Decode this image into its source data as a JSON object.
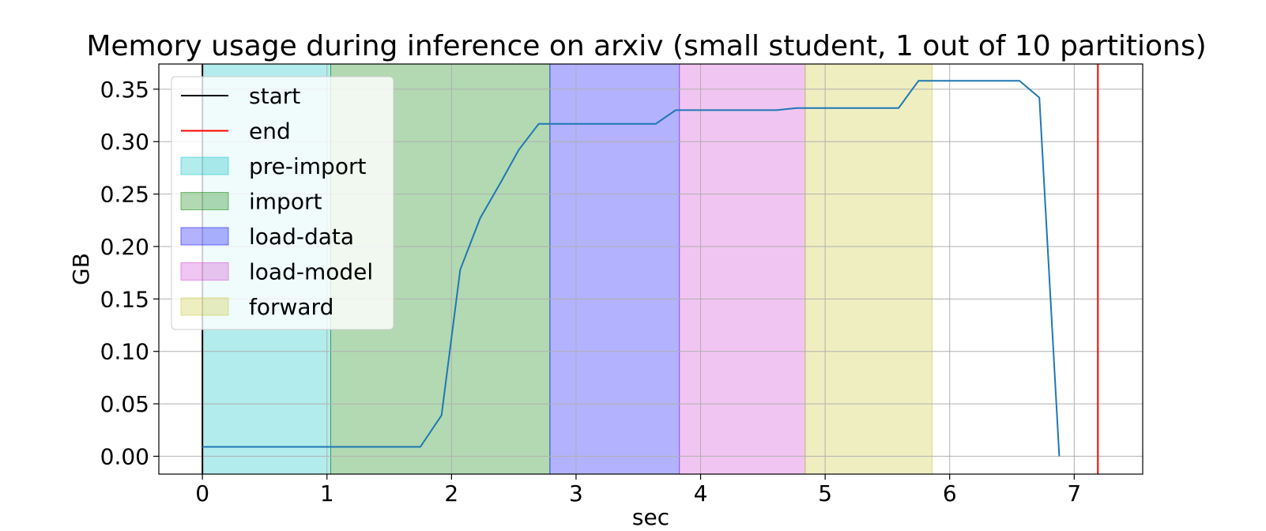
{
  "chart_data": {
    "type": "line",
    "title": "Memory usage during inference on arxiv (small student, 1 out of 10 partitions)",
    "xlabel": "sec",
    "ylabel": "GB",
    "xlim": [
      -0.35,
      7.55
    ],
    "ylim": [
      -0.017,
      0.374
    ],
    "xticks": [
      0,
      1,
      2,
      3,
      4,
      5,
      6,
      7
    ],
    "yticks": [
      0.0,
      0.05,
      0.1,
      0.15,
      0.2,
      0.25,
      0.3,
      0.35
    ],
    "ytick_labels": [
      "0.00",
      "0.05",
      "0.10",
      "0.15",
      "0.20",
      "0.25",
      "0.30",
      "0.35"
    ],
    "grid": true,
    "legend_position": "upper-left",
    "vlines": [
      {
        "name": "start",
        "x": 0.0,
        "color": "#000000"
      },
      {
        "name": "end",
        "x": 7.19,
        "color": "#ff0000"
      }
    ],
    "spans": [
      {
        "name": "pre-import",
        "x0": 0.0,
        "x1": 1.03,
        "color": "#00bfc4"
      },
      {
        "name": "import",
        "x0": 1.03,
        "x1": 2.79,
        "color": "#008000"
      },
      {
        "name": "load-data",
        "x0": 2.79,
        "x1": 3.83,
        "color": "#0000ff"
      },
      {
        "name": "load-model",
        "x0": 3.83,
        "x1": 4.84,
        "color": "#d040d0"
      },
      {
        "name": "forward",
        "x0": 4.84,
        "x1": 5.86,
        "color": "#c8c832"
      }
    ],
    "series": [
      {
        "color": "#1f77b4",
        "x": [
          0.0,
          0.15,
          0.3,
          0.46,
          0.61,
          0.76,
          0.91,
          1.07,
          1.22,
          1.37,
          1.52,
          1.75,
          1.92,
          2.07,
          2.23,
          2.39,
          2.54,
          2.7,
          2.85,
          3.0,
          3.15,
          3.3,
          3.45,
          3.64,
          3.8,
          3.95,
          4.1,
          4.25,
          4.4,
          4.61,
          4.77,
          4.92,
          5.07,
          5.22,
          5.37,
          5.59,
          5.75,
          5.9,
          6.05,
          6.2,
          6.35,
          6.56,
          6.72,
          6.88
        ],
        "y": [
          0.009,
          0.009,
          0.009,
          0.009,
          0.009,
          0.009,
          0.009,
          0.009,
          0.009,
          0.009,
          0.009,
          0.009,
          0.039,
          0.178,
          0.227,
          0.26,
          0.292,
          0.317,
          0.317,
          0.317,
          0.317,
          0.317,
          0.317,
          0.317,
          0.33,
          0.33,
          0.33,
          0.33,
          0.33,
          0.33,
          0.332,
          0.332,
          0.332,
          0.332,
          0.332,
          0.332,
          0.358,
          0.358,
          0.358,
          0.358,
          0.358,
          0.358,
          0.342,
          0.0
        ]
      }
    ],
    "legend": [
      {
        "label": "start",
        "kind": "line",
        "color": "#000000"
      },
      {
        "label": "end",
        "kind": "line",
        "color": "#ff0000"
      },
      {
        "label": "pre-import",
        "kind": "patch",
        "color": "#00bfc4"
      },
      {
        "label": "import",
        "kind": "patch",
        "color": "#008000"
      },
      {
        "label": "load-data",
        "kind": "patch",
        "color": "#0000ff"
      },
      {
        "label": "load-model",
        "kind": "patch",
        "color": "#d040d0"
      },
      {
        "label": "forward",
        "kind": "patch",
        "color": "#c8c832"
      }
    ]
  }
}
